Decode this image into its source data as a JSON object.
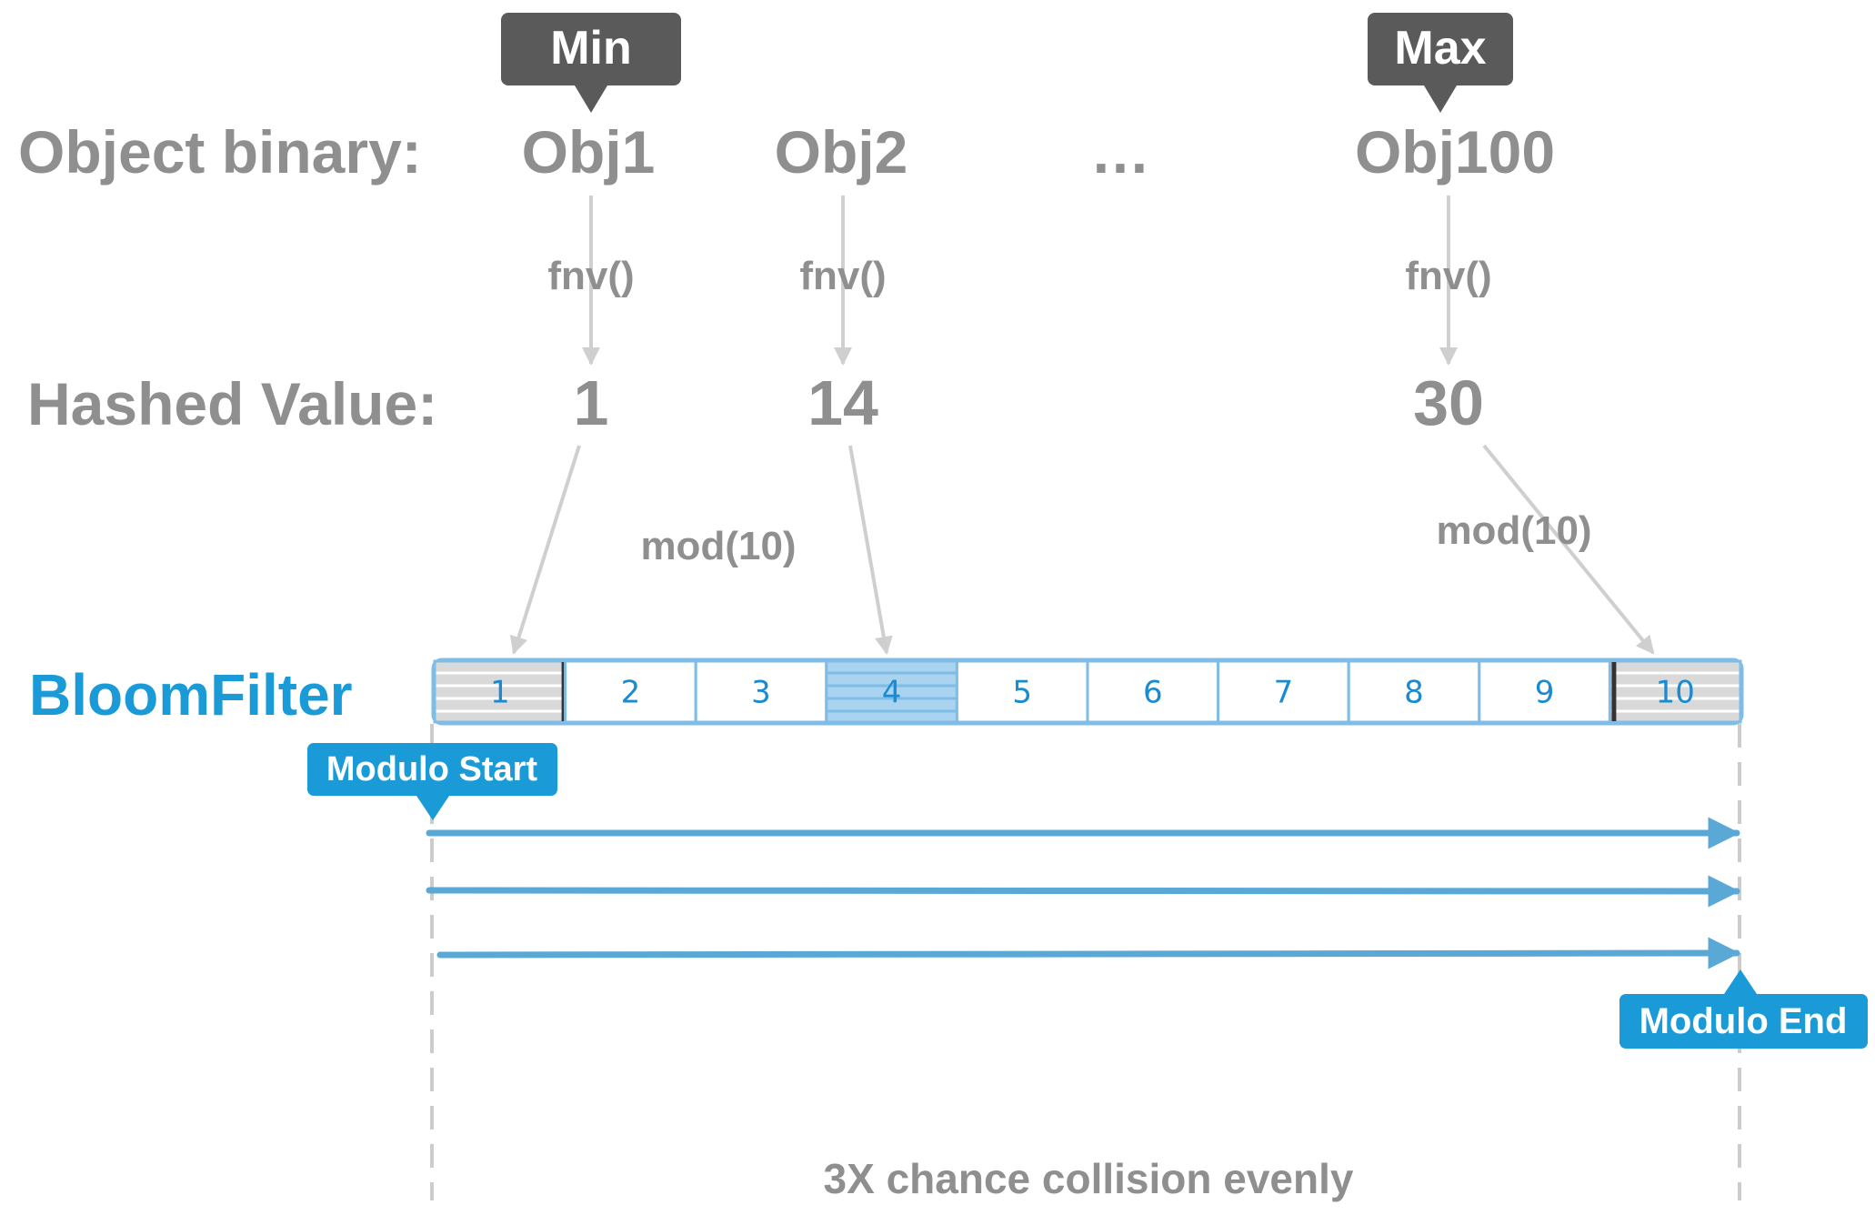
{
  "tags": {
    "min": "Min",
    "max": "Max",
    "modulo_start": "Modulo Start",
    "modulo_end": "Modulo End"
  },
  "row_labels": {
    "object_binary": "Object binary:",
    "hashed_value": "Hashed Value:",
    "bloom_filter": "BloomFilter"
  },
  "objects": [
    {
      "name": "Obj1",
      "fn": "fnv()",
      "hash": "1"
    },
    {
      "name": "Obj2",
      "fn": "fnv()",
      "hash": "14"
    },
    {
      "name": "…"
    },
    {
      "name": "Obj100",
      "fn": "fnv()",
      "hash": "30"
    }
  ],
  "mod_labels": [
    "mod(10)",
    "mod(10)"
  ],
  "cells": [
    "1",
    "2",
    "3",
    "4",
    "5",
    "6",
    "7",
    "8",
    "9",
    "10"
  ],
  "cell_states": [
    "boundary",
    "empty",
    "empty",
    "hit",
    "empty",
    "empty",
    "empty",
    "empty",
    "empty",
    "boundary"
  ],
  "footnote": "3X chance collision evenly",
  "colors": {
    "accent": "#1a9bd7",
    "gray_text": "#8f8f8f",
    "tag_dark": "#5a5a5a",
    "hit_cell": "#a9d3ef",
    "boundary_cell": "#d7d7d7"
  }
}
